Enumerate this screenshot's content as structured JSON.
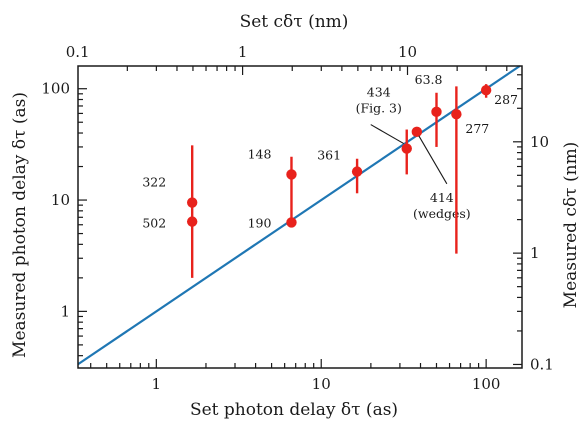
{
  "chart_data": {
    "type": "scatter",
    "x_scale": "log",
    "y_scale": "log",
    "xlim": [
      0.335,
      165
    ],
    "ylim": [
      0.31,
      160
    ],
    "xlabel": "Set photon delay δτ (as)",
    "ylabel": "Measured photon delay δτ (as)",
    "x2label": "Set cδτ (nm)",
    "y2label": "Measured cδτ (nm)",
    "x_ticks": [
      {
        "value": 1,
        "label": "1"
      },
      {
        "value": 10,
        "label": "10"
      },
      {
        "value": 100,
        "label": "100"
      }
    ],
    "y_ticks": [
      {
        "value": 1,
        "label": "1"
      },
      {
        "value": 10,
        "label": "10"
      },
      {
        "value": 100,
        "label": "100"
      }
    ],
    "x2_ticks": [
      {
        "value": 0.1,
        "label": "0.1"
      },
      {
        "value": 1,
        "label": "1"
      },
      {
        "value": 10,
        "label": "10"
      }
    ],
    "y2_ticks": [
      {
        "value": 0.1,
        "label": "0.1"
      },
      {
        "value": 1,
        "label": "1"
      },
      {
        "value": 10,
        "label": "10"
      }
    ],
    "points": [
      {
        "label": "322",
        "x": 1.65,
        "y": 9.5,
        "err_lo": 9.5,
        "err_hi": 31
      },
      {
        "label": "502",
        "x": 1.65,
        "y": 6.4,
        "err_lo": 2.0,
        "err_hi": 9.5
      },
      {
        "label": "148",
        "x": 6.6,
        "y": 17,
        "err_lo": 6.3,
        "err_hi": 24.5
      },
      {
        "label": "190",
        "x": 6.6,
        "y": 6.3,
        "err_lo": 6.3,
        "err_hi": 6.3
      },
      {
        "label": "361",
        "x": 16.5,
        "y": 18,
        "err_lo": 11.5,
        "err_hi": 23.5
      },
      {
        "label": "434\n(Fig. 3)",
        "x": 33,
        "y": 29,
        "err_lo": 17,
        "err_hi": 43
      },
      {
        "label": "414\n(wedges)",
        "x": 38,
        "y": 41,
        "err_lo": 41,
        "err_hi": 41
      },
      {
        "label": "63.8",
        "x": 50,
        "y": 62,
        "err_lo": 30,
        "err_hi": 92
      },
      {
        "label": "277",
        "x": 66,
        "y": 59,
        "err_lo": 3.3,
        "err_hi": 105
      },
      {
        "label": "287",
        "x": 100,
        "y": 97,
        "err_lo": 83,
        "err_hi": 110
      }
    ],
    "identity_line": true,
    "grid": false,
    "colors": {
      "points": "#e8221c",
      "line": "#1f77b4",
      "axes": "#1a1a1a"
    }
  }
}
